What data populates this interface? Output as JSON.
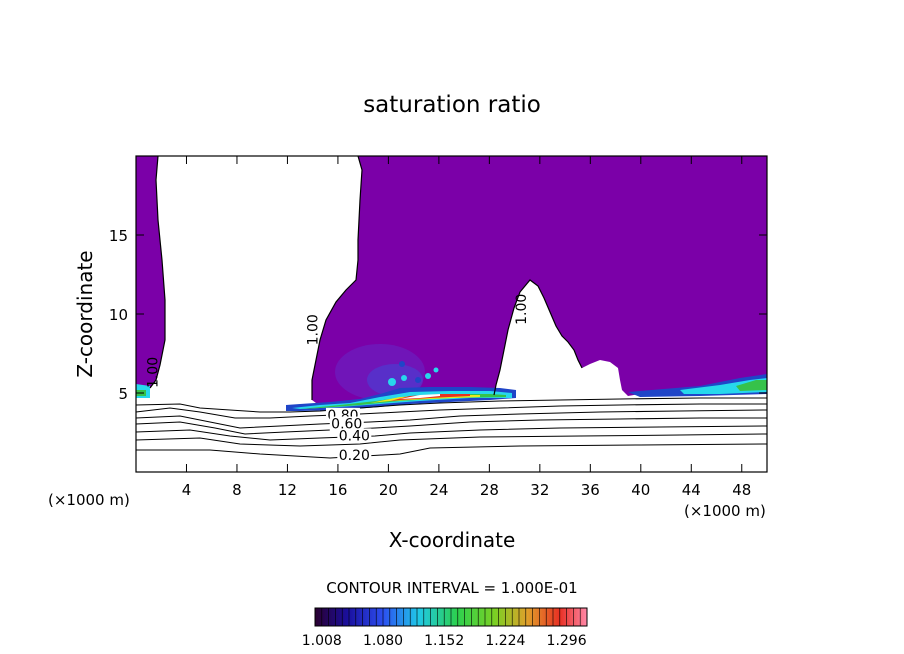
{
  "chart_data": {
    "type": "heatmap",
    "title": "saturation ratio",
    "xlabel": "X-coordinate",
    "ylabel": "Z-coordinate",
    "x_unit_left": "(×1000 m)",
    "x_unit_right": "(×1000 m)",
    "xlim": [
      0,
      50
    ],
    "ylim": [
      0,
      20
    ],
    "x_ticks": [
      "4",
      "8",
      "12",
      "16",
      "20",
      "24",
      "28",
      "32",
      "36",
      "40",
      "44",
      "48"
    ],
    "y_ticks": [
      "5",
      "10",
      "15"
    ],
    "contour_interval_label": "CONTOUR INTERVAL = 1.000E-01",
    "contour_labels": [
      {
        "text": "1.00",
        "x": 1.7,
        "y": 6.3
      },
      {
        "text": "1.00",
        "x": 14.4,
        "y": 9.0
      },
      {
        "text": "1.00",
        "x": 30.9,
        "y": 10.3
      },
      {
        "text": "0.80",
        "x": 16.4,
        "y": 3.3
      },
      {
        "text": "0.60",
        "x": 16.7,
        "y": 2.75
      },
      {
        "text": "0.40",
        "x": 17.3,
        "y": 2.0
      },
      {
        "text": "0.20",
        "x": 17.3,
        "y": 0.75
      }
    ],
    "colorbar": {
      "labels": [
        "1.008",
        "1.080",
        "1.152",
        "1.224",
        "1.296"
      ],
      "min": 1.0,
      "max": 1.32
    },
    "colors": {
      "field": "#7b00a8",
      "band_blue": "#1f45c8",
      "band_cyan": "#27d8ec",
      "band_green": "#36c24a",
      "band_yellow": "#e8e81f",
      "band_red": "#e83020",
      "contour": "#000000"
    }
  }
}
